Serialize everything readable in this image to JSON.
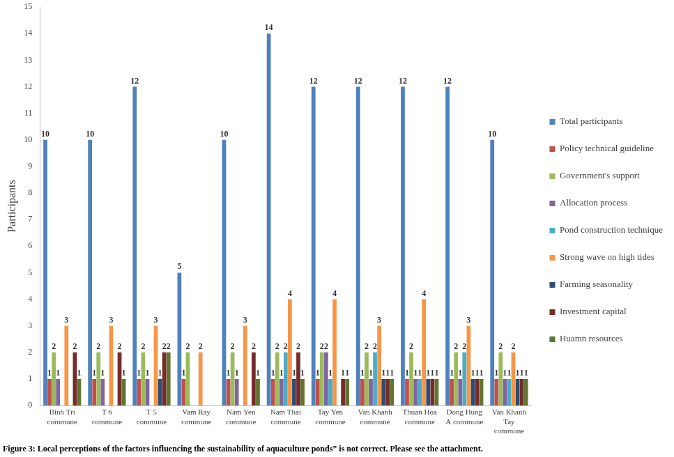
{
  "chart_data": {
    "type": "bar",
    "title": "Figure 3: Local perceptions of the factors influencing the sustainability of aquaculture ponds” is not correct. Please see the attachment.",
    "y_label": "Participants",
    "categories": [
      "Binh Tri commune",
      "T 6 commune",
      "T 5 commune",
      "Vam Ray commune",
      "Nam Yen commune",
      "Nam Thai commune",
      "Tay Yen commune",
      "Van Khanh commune",
      "Thuan Hoa commune",
      "Dong Hung A commune",
      "Van Khanh Tay commune"
    ],
    "series": [
      {
        "name": "Total participants",
        "color": "#4f81bd",
        "values": [
          10,
          10,
          12,
          5,
          10,
          14,
          12,
          12,
          12,
          12,
          10
        ]
      },
      {
        "name": "Policy technical guideline",
        "color": "#c0504d",
        "values": [
          1,
          1,
          1,
          1,
          1,
          1,
          1,
          1,
          1,
          1,
          1
        ]
      },
      {
        "name": "Government's support",
        "color": "#9bbb59",
        "values": [
          2,
          2,
          2,
          2,
          2,
          2,
          2,
          2,
          2,
          2,
          2
        ]
      },
      {
        "name": "Allocation process",
        "color": "#8064a2",
        "values": [
          1,
          1,
          1,
          null,
          1,
          1,
          2,
          1,
          1,
          1,
          1
        ]
      },
      {
        "name": "Pond construction technique",
        "color": "#4bacc6",
        "values": [
          null,
          null,
          null,
          null,
          null,
          2,
          1,
          2,
          1,
          2,
          1
        ]
      },
      {
        "name": "Strong wave on high tides",
        "color": "#f79646",
        "values": [
          3,
          3,
          3,
          2,
          3,
          4,
          4,
          3,
          4,
          3,
          2
        ]
      },
      {
        "name": "Farming seasonality",
        "color": "#2c4d75",
        "values": [
          null,
          null,
          1,
          null,
          null,
          1,
          null,
          1,
          1,
          1,
          1
        ]
      },
      {
        "name": "Investment capital",
        "color": "#772c2a",
        "values": [
          2,
          2,
          2,
          null,
          2,
          2,
          1,
          1,
          1,
          1,
          1
        ]
      },
      {
        "name": "Huamn resources",
        "color": "#5f7530",
        "values": [
          1,
          1,
          2,
          null,
          1,
          1,
          1,
          1,
          1,
          1,
          1
        ]
      }
    ],
    "ylim": [
      0,
      15
    ],
    "yticks": [
      0,
      1,
      2,
      3,
      4,
      5,
      6,
      7,
      8,
      9,
      10,
      11,
      12,
      13,
      14,
      15
    ],
    "grid": false,
    "legend": "right",
    "data_labels": true
  }
}
